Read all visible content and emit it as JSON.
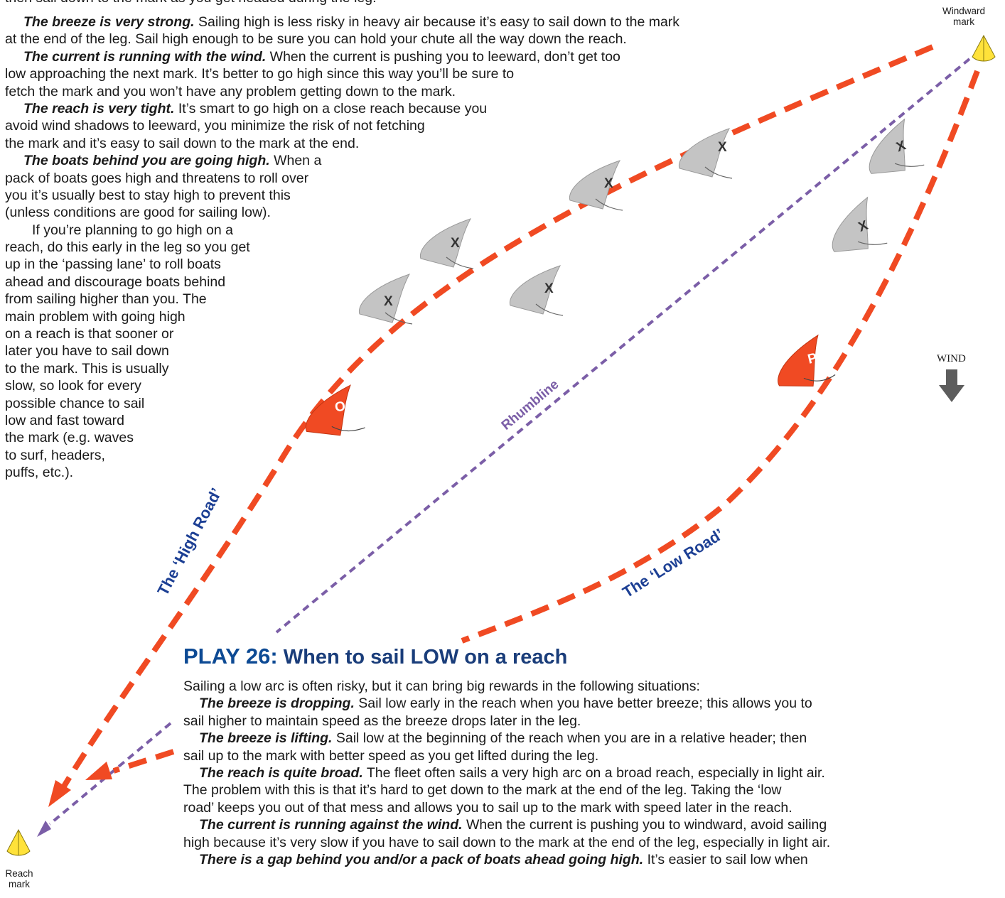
{
  "top_text": {
    "cut_line": "then sail down to the mark as you get headed during the leg.",
    "p1_head": "The breeze is very strong.",
    "p1_l1": " Sailing high is less risky in heavy air because it’s easy to sail down to the mark",
    "p1_l2": "at the end of the leg. Sail high enough to be sure you can hold your chute all the way down the reach.",
    "p2_head": "The current is running with the wind.",
    "p2_l1": " When the current is pushing you to leeward, don’t get too",
    "p2_l2": "low approaching the next mark. It’s better to go high since this way you’ll be sure to",
    "p2_l3": "fetch the mark and you won’t have any problem getting down to the mark.",
    "p3_head": "The reach is very tight.",
    "p3_l1": " It’s smart to go high on a close reach because you",
    "p3_l2": "avoid wind shadows to leeward, you minimize the risk of not fetching",
    "p3_l3": "the mark and it’s easy to sail down to the mark at the end.",
    "p4_head": "The boats behind you are going high.",
    "p4_l1": " When a",
    "p4_l2": "pack of boats goes high and threatens to roll over",
    "p4_l3": "you it’s usually best to stay high to prevent this",
    "p4_l4": "(unless conditions are good for sailing low).",
    "p5_l1": "If you’re planning to go high on a",
    "p5_l2": "reach, do this early in the leg so you get",
    "p5_l3": "up in the ‘passing lane’ to roll boats",
    "p5_l4": "ahead and discourage boats behind",
    "p5_l5": "from sailing higher than you. The",
    "p5_l6": "main problem with going high",
    "p5_l7": "on a reach is that sooner or",
    "p5_l8": "later you have to sail down",
    "p5_l9": "to the mark. This is usually",
    "p5_l10": "slow, so look for every",
    "p5_l11": "possible chance to sail",
    "p5_l12": "low and fast toward",
    "p5_l13": "the mark (e.g. waves",
    "p5_l14": "to surf, headers,",
    "p5_l15": "puffs, etc.)."
  },
  "diagram": {
    "windward_mark_l1": "Windward",
    "windward_mark_l2": "mark",
    "reach_mark_l1": "Reach",
    "reach_mark_l2": "mark",
    "wind_label": "WIND",
    "rhumbline_label": "Rhumbline",
    "high_road_label": "The ‘High Road’",
    "low_road_label": "The ‘Low Road’",
    "boat_x_letter": "X",
    "boat_o_letter": "O",
    "boat_p_letter": "P",
    "colors": {
      "red_path": "#f04a23",
      "rhumbline": "#7b5ea7",
      "road_label": "#1c3f94",
      "gray_boat": "#c4c4c4",
      "mark_yellow": "#ffe23a",
      "wind_arrow": "#5d5d5d"
    }
  },
  "play": {
    "number": "PLAY 26:",
    "title": " When to sail LOW on a reach",
    "intro": "Sailing a low arc is often risky, but it can bring big rewards in the following situations:",
    "s1_head": "The breeze is dropping.",
    "s1_l1": " Sail low early in the reach when you have better breeze; this allows you to",
    "s1_l2": "sail higher to maintain speed as the breeze drops later in the leg.",
    "s2_head": "The breeze is lifting.",
    "s2_l1": " Sail low at the beginning of the reach when you are in a relative header; then",
    "s2_l2": "sail up to the mark with better speed as you get lifted during the leg.",
    "s3_head": "The reach is quite broad.",
    "s3_l1": " The fleet often sails a very high arc on a broad reach, especially in light air.",
    "s3_l2": "The problem with this is that it’s hard to get down to the mark at the end of the leg. Taking the ‘low",
    "s3_l3": "road’ keeps you out of that mess and allows you to sail up to the mark with speed later in the reach.",
    "s4_head": "The current is running against the wind.",
    "s4_l1": " When the current is pushing you to windward, avoid sailing",
    "s4_l2": "high because it’s very slow if you have to sail down to the mark at the end of the leg, especially in light air.",
    "s5_head": "There is a gap behind you and/or a pack of boats ahead going high.",
    "s5_l1": " It’s easier to sail low when"
  }
}
